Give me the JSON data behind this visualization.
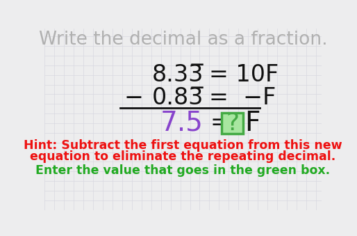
{
  "title": "Write the decimal as a fraction.",
  "title_color": "#b0b0b0",
  "title_fontsize": 19,
  "bg_color": "#ededee",
  "grid_color": "#d8d8e0",
  "line1_left": "8.33̅",
  "line1_right": "= 10F",
  "line2_minus": "−",
  "line2_left": "0.83̅",
  "line2_right": "=  −F",
  "line3_left": "7.5",
  "line3_eq": "=",
  "line3_box": "?",
  "line3_right": "F",
  "line3_left_color": "#8844cc",
  "line3_box_bg": "#a8e6a0",
  "line3_box_border": "#44aa44",
  "hint_line1": "Hint: Subtract the first equation from this new",
  "hint_line2": "equation to eliminate the repeating decimal.",
  "hint_color": "#ee1111",
  "hint_fontsize": 12.5,
  "enter_line": "Enter the value that goes in the green box.",
  "enter_color": "#22aa22",
  "enter_fontsize": 12.5,
  "eq_fontsize": 24,
  "main_color": "#111111"
}
